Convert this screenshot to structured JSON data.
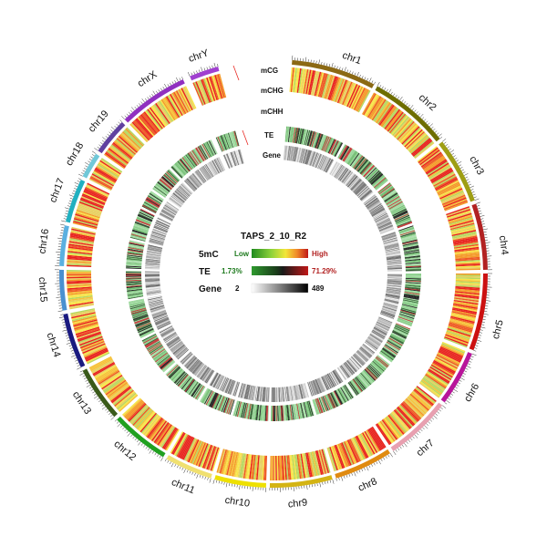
{
  "sample_id": "TAPS_2_10_R2",
  "chromosomes": [
    {
      "name": "chr1",
      "color": "#8B6914"
    },
    {
      "name": "chr2",
      "color": "#6E6E00"
    },
    {
      "name": "chr3",
      "color": "#9E9E14"
    },
    {
      "name": "chr4",
      "color": "#B22222"
    },
    {
      "name": "chr5",
      "color": "#CC1111"
    },
    {
      "name": "chr6",
      "color": "#B8159A"
    },
    {
      "name": "chr7",
      "color": "#E8A0B0"
    },
    {
      "name": "chr8",
      "color": "#E08A10"
    },
    {
      "name": "chr9",
      "color": "#D4B414"
    },
    {
      "name": "chr10",
      "color": "#EEE000"
    },
    {
      "name": "chr11",
      "color": "#F0E070"
    },
    {
      "name": "chr12",
      "color": "#20A020"
    },
    {
      "name": "chr13",
      "color": "#3A5A1A"
    },
    {
      "name": "chr14",
      "color": "#1A1A80"
    },
    {
      "name": "chr15",
      "color": "#4A90D0"
    },
    {
      "name": "chr16",
      "color": "#5AB0E0"
    },
    {
      "name": "chr17",
      "color": "#20B0C0"
    },
    {
      "name": "chr18",
      "color": "#70C8D8"
    },
    {
      "name": "chr19",
      "color": "#6040A0"
    },
    {
      "name": "chrX",
      "color": "#9030C0"
    },
    {
      "name": "chrY",
      "color": "#A040D0"
    }
  ],
  "track_labels": {
    "mCG": "mCG",
    "mCHG": "mCHG",
    "mCHH": "mCHH",
    "TE": "TE",
    "Gene": "Gene"
  },
  "legend": {
    "title": "TAPS_2_10_R2",
    "rows": [
      {
        "label": "5mC",
        "low": "Low",
        "high": "High",
        "low_color": "#1E7A1E",
        "high_color": "#B22222"
      },
      {
        "label": "TE",
        "low": "1.73%",
        "high": "71.29%",
        "low_color": "#1E7A1E",
        "high_color": "#B22222"
      },
      {
        "label": "Gene",
        "low": "2",
        "high": "489",
        "low_color": "#111111",
        "high_color": "#111111"
      }
    ]
  },
  "colors": {
    "methyl_low": "#F7E54A",
    "methyl_mid": "#F49A2A",
    "methyl_high": "#E8241E",
    "te_low": "#8FD38F",
    "te_high": "#1A1A1A",
    "gene_low": "#FFFFFF",
    "gene_high": "#000000"
  }
}
